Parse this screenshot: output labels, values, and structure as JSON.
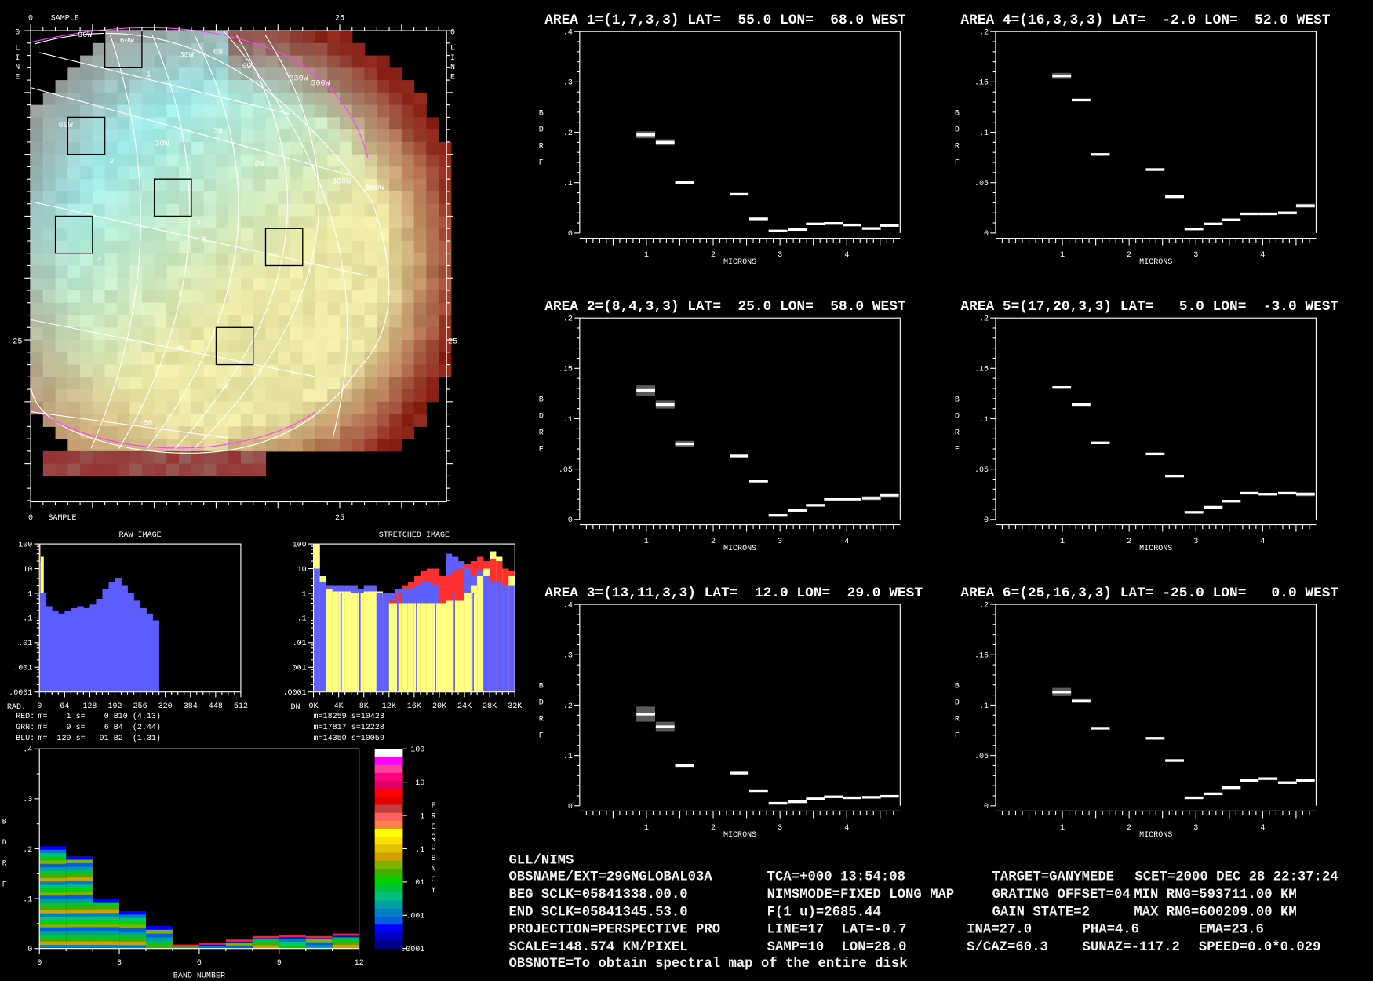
{
  "image_map": {
    "sample_label": "SAMPLE",
    "line_letters": [
      "L",
      "I",
      "N",
      "E"
    ],
    "tick_0": "0",
    "tick_25": "25",
    "grid_labels": [
      "90W",
      "60W",
      "30W",
      "0W",
      "330W",
      "300W",
      "60W",
      "30W",
      "0W",
      "330W",
      "300W",
      "60",
      "30",
      "0",
      "-30",
      "-60"
    ],
    "areas": [
      {
        "label": "1",
        "line": 1,
        "sample": 7
      },
      {
        "label": "2",
        "line": 8,
        "sample": 4
      },
      {
        "label": "3",
        "line": 13,
        "sample": 11
      },
      {
        "label": "4",
        "line": 16,
        "sample": 3
      },
      {
        "label": "5",
        "line": 17,
        "sample": 20
      },
      {
        "label": "6",
        "line": 25,
        "sample": 16
      }
    ],
    "colors": {
      "grid": "#ffffff",
      "limb": "#ff40ff",
      "box": "#000000"
    }
  },
  "raw_hist": {
    "title": "RAW IMAGE",
    "xlabel": "RAD.",
    "xticks": [
      "0",
      "64",
      "128",
      "192",
      "256",
      "320",
      "384",
      "448",
      "512"
    ],
    "xlim": [
      0,
      512
    ],
    "yticks": [
      "100",
      "10",
      "1",
      ".1",
      ".01",
      ".001",
      ".0001"
    ],
    "ylim": [
      0.0001,
      100
    ],
    "yscale": "log",
    "bin_width": 16,
    "blue": [
      1,
      0.3,
      0.2,
      0.15,
      0.2,
      0.25,
      0.3,
      0.25,
      0.35,
      0.6,
      1.5,
      3,
      4,
      2,
      1,
      0.5,
      0.25,
      0.15,
      0.08
    ],
    "yellow_spike": 30,
    "red_spike": 100,
    "stats": [
      {
        "name": "RED:",
        "text": " m=    1 s=    0 B10 (4.13)",
        "color": "#ff2020"
      },
      {
        "name": "GRN:",
        "text": " m=    9 s=    6 B4  (2.44)",
        "color": "#ffff80"
      },
      {
        "name": "BLU:",
        "text": " m=  129 s=   91 B2  (1.31)",
        "color": "#6060ff"
      }
    ]
  },
  "stretched_hist": {
    "title": "STRETCHED IMAGE",
    "xlabel": "DN",
    "xticks": [
      "0K",
      "4K",
      "8K",
      "12K",
      "16K",
      "20K",
      "24K",
      "28K",
      "32K"
    ],
    "xlim": [
      0,
      32768
    ],
    "yticks": [
      "100",
      "10",
      "1",
      ".1",
      ".01",
      ".001",
      ".0001"
    ],
    "ylim": [
      0.0001,
      100
    ],
    "yscale": "log",
    "bin_width": 1024,
    "yellow": [
      100,
      5,
      1.5,
      1.2,
      1.2,
      1.2,
      1,
      1,
      1.2,
      1.2,
      1.2,
      1,
      0.4,
      0.4,
      0.4,
      0.4,
      0.4,
      0.4,
      0.4,
      0.4,
      0.4,
      0.5,
      0.5,
      0.5,
      1,
      2,
      5,
      10,
      50,
      30,
      10,
      5
    ],
    "blue": [
      10,
      3,
      2,
      2,
      2,
      2,
      2,
      1.5,
      2,
      2,
      1,
      1,
      1,
      1.5,
      1.5,
      1.5,
      2,
      3,
      3,
      2,
      5,
      40,
      30,
      20,
      10,
      5,
      8,
      5,
      3,
      3,
      2,
      2
    ],
    "red": [
      0,
      0,
      0,
      0,
      0,
      0,
      0,
      0,
      0,
      0,
      0,
      0,
      0.5,
      1,
      2,
      3,
      5,
      8,
      10,
      10,
      5,
      5,
      8,
      10,
      15,
      20,
      30,
      20,
      25,
      20,
      10,
      8
    ],
    "stats": [
      "m=18259 s=10423",
      "m=17817 s=12228",
      "m=14350 s=10059"
    ],
    "colors": {
      "red": "#ff3030",
      "yellow": "#ffff80",
      "blue": "#6060ff"
    }
  },
  "band_plot": {
    "xlabel": "BAND NUMBER",
    "ylabel": "BDRF",
    "xticks": [
      "0",
      "3",
      "6",
      "9",
      "12"
    ],
    "xlim": [
      0,
      12
    ],
    "yticks": [
      "0",
      ".1",
      ".2",
      ".3",
      ".4"
    ],
    "ylim": [
      0,
      0.4
    ],
    "band_max": [
      0.205,
      0.185,
      0.1,
      0.075,
      0.045,
      0.008,
      0.012,
      0.018,
      0.025,
      0.027,
      0.025,
      0.03
    ]
  },
  "colorbar": {
    "label_letters": [
      "F",
      "R",
      "E",
      "Q",
      "U",
      "E",
      "N",
      "C",
      "Y"
    ],
    "ticks": [
      "100",
      "10",
      "1",
      ".1",
      ".01",
      ".001",
      ".0001"
    ],
    "colors": [
      "#ffffff",
      "#ff00ff",
      "#ff40a0",
      "#ff0080",
      "#e00060",
      "#ff0000",
      "#e00000",
      "#c04040",
      "#ff6060",
      "#ff8050",
      "#ffff00",
      "#ffe000",
      "#e0c000",
      "#d0a000",
      "#80b000",
      "#40b000",
      "#00d000",
      "#00c040",
      "#00c080",
      "#00a0a0",
      "#0080c0",
      "#0060e0",
      "#0000ff",
      "#0000c0",
      "#000080"
    ]
  },
  "chart_data": {
    "type": "line",
    "xlabel": "MICRONS",
    "ylabel": "BDRF",
    "xlim": [
      0,
      4.8
    ],
    "xticks": [
      "1",
      "2",
      "3",
      "4"
    ],
    "wavelengths": [
      0.99,
      1.28,
      1.57,
      2.39,
      2.68,
      2.97,
      3.26,
      3.53,
      3.8,
      4.08,
      4.37,
      4.64
    ],
    "series": [
      {
        "title": "AREA 1=(1,7,3,3) LAT=  55.0 LON=  68.0 WEST",
        "ylim": [
          0,
          0.4
        ],
        "yticks": [
          "0",
          ".1",
          ".2",
          ".3",
          ".4"
        ],
        "values": [
          0.195,
          0.18,
          0.1,
          0.077,
          0.028,
          0.004,
          0.007,
          0.018,
          0.019,
          0.016,
          0.009,
          0.015
        ],
        "err": [
          0.007,
          0.006,
          0.002,
          0,
          0,
          0,
          0,
          0,
          0,
          0,
          0,
          0
        ]
      },
      {
        "title": "AREA 2=(8,4,3,3) LAT=  25.0 LON=  58.0 WEST",
        "ylim": [
          0,
          0.2
        ],
        "yticks": [
          "0",
          ".05",
          ".1",
          ".15",
          ".2"
        ],
        "values": [
          0.128,
          0.114,
          0.075,
          0.063,
          0.038,
          0.004,
          0.009,
          0.014,
          0.02,
          0.02,
          0.021,
          0.024
        ],
        "err": [
          0.005,
          0.004,
          0.003,
          0,
          0,
          0,
          0,
          0,
          0,
          0,
          0.002,
          0.002
        ]
      },
      {
        "title": "AREA 3=(13,11,3,3) LAT=  12.0 LON=  29.0 WEST",
        "ylim": [
          0,
          0.4
        ],
        "yticks": [
          "0",
          ".1",
          ".2",
          ".3",
          ".4"
        ],
        "values": [
          0.182,
          0.157,
          0.08,
          0.065,
          0.03,
          0.005,
          0.008,
          0.014,
          0.018,
          0.016,
          0.017,
          0.019
        ],
        "err": [
          0.015,
          0.01,
          0,
          0,
          0,
          0,
          0,
          0,
          0,
          0,
          0,
          0
        ]
      },
      {
        "title": "AREA 4=(16,3,3,3) LAT=  -2.0 LON=  52.0 WEST",
        "ylim": [
          0,
          0.2
        ],
        "yticks": [
          "0",
          ".05",
          ".1",
          ".15",
          ".2"
        ],
        "values": [
          0.156,
          0.132,
          0.078,
          0.063,
          0.036,
          0.004,
          0.009,
          0.013,
          0.019,
          0.019,
          0.02,
          0.027
        ],
        "err": [
          0.003,
          0,
          0,
          0,
          0,
          0,
          0,
          0,
          0,
          0,
          0.001,
          0.002
        ]
      },
      {
        "title": "AREA 5=(17,20,3,3) LAT=   5.0 LON=  -3.0 WEST",
        "ylim": [
          0,
          0.2
        ],
        "yticks": [
          "0",
          ".05",
          ".1",
          ".15",
          ".2"
        ],
        "values": [
          0.131,
          0.114,
          0.076,
          0.065,
          0.043,
          0.007,
          0.012,
          0.018,
          0.026,
          0.025,
          0.026,
          0.025
        ],
        "err": [
          0,
          0,
          0,
          0,
          0,
          0,
          0,
          0,
          0,
          0,
          0,
          0.002
        ]
      },
      {
        "title": "AREA 6=(25,16,3,3) LAT= -25.0 LON=   0.0 WEST",
        "ylim": [
          0,
          0.2
        ],
        "yticks": [
          "0",
          ".05",
          ".1",
          ".15",
          ".2"
        ],
        "values": [
          0.113,
          0.104,
          0.077,
          0.067,
          0.045,
          0.008,
          0.012,
          0.018,
          0.025,
          0.027,
          0.023,
          0.025
        ],
        "err": [
          0.004,
          0.002,
          0,
          0,
          0,
          0,
          0,
          0,
          0,
          0,
          0,
          0
        ]
      }
    ]
  },
  "info": {
    "header": "GLL/NIMS",
    "r1": [
      "OBSNAME/EXT=29GNGLOBAL03A",
      "TCA=+000 13:54:08",
      "TARGET=GANYMEDE",
      "SCET=2000 DEC 28 22:37:24"
    ],
    "r2": [
      "BEG SCLK=05841338.00.0",
      "NIMSMODE=FIXED LONG MAP",
      "GRATING OFFSET=04",
      "MIN RNG=593711.00 KM"
    ],
    "r3": [
      "END SCLK=05841345.53.0",
      "F(1 u)=2685.44",
      "GAIN STATE=2",
      "MAX RNG=600209.00 KM"
    ],
    "r4": [
      "PROJECTION=PERSPECTIVE PRO",
      "LINE=17",
      "LAT=-0.7",
      "INA=27.0",
      "PHA=4.6",
      "EMA=23.6"
    ],
    "r5": [
      "SCALE=148.574 KM/PIXEL",
      "SAMP=10",
      "LON=28.0",
      "S/CAZ=60.3",
      "SUNAZ=-117.2",
      "SPEED=0.0*0.029"
    ],
    "note": "OBSNOTE=To obtain spectral map of the entire disk"
  }
}
